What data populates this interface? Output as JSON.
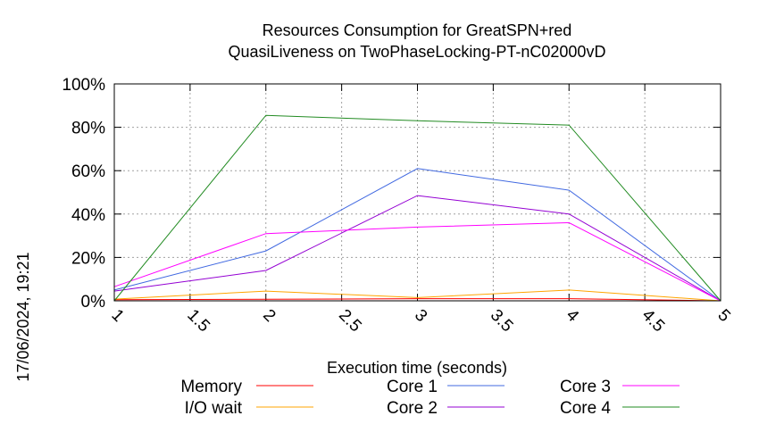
{
  "chart_data": {
    "type": "line",
    "title_line1": "Resources Consumption for GreatSPN+red",
    "title_line2": "QuasiLiveness on TwoPhaseLocking-PT-nC02000vD",
    "xlabel": "Execution time (seconds)",
    "ylabel": "",
    "timestamp": "17/06/2024, 19:21",
    "xlim": [
      1,
      5
    ],
    "ylim": [
      0,
      100
    ],
    "x_ticks": [
      1,
      1.5,
      2,
      2.5,
      3,
      3.5,
      4,
      4.5,
      5
    ],
    "x_tick_labels": [
      "1",
      "1.5",
      "2",
      "2.5",
      "3",
      "3.5",
      "4",
      "4.5",
      "5"
    ],
    "y_ticks": [
      0,
      20,
      40,
      60,
      80,
      100
    ],
    "y_tick_labels": [
      "0%",
      "20%",
      "40%",
      "60%",
      "80%",
      "100%"
    ],
    "grid": true,
    "legend_position": "bottom",
    "x": [
      1,
      2,
      3,
      4,
      5
    ],
    "series": [
      {
        "name": "Memory",
        "color": "#ff0000",
        "values": [
          0.5,
          0.7,
          1.0,
          1.0,
          0.0
        ]
      },
      {
        "name": "I/O wait",
        "color": "#ffa500",
        "values": [
          0.8,
          4.5,
          1.5,
          5.0,
          0.0
        ]
      },
      {
        "name": "Core 1",
        "color": "#4169e1",
        "values": [
          5.0,
          23.0,
          61.0,
          51.0,
          0.0
        ]
      },
      {
        "name": "Core 2",
        "color": "#9400d3",
        "values": [
          4.5,
          14.0,
          48.5,
          40.0,
          0.0
        ]
      },
      {
        "name": "Core 3",
        "color": "#ff00ff",
        "values": [
          6.5,
          31.0,
          34.0,
          36.0,
          0.0
        ]
      },
      {
        "name": "Core 4",
        "color": "#228b22",
        "values": [
          0.0,
          85.5,
          83.0,
          81.0,
          0.0
        ]
      }
    ]
  }
}
